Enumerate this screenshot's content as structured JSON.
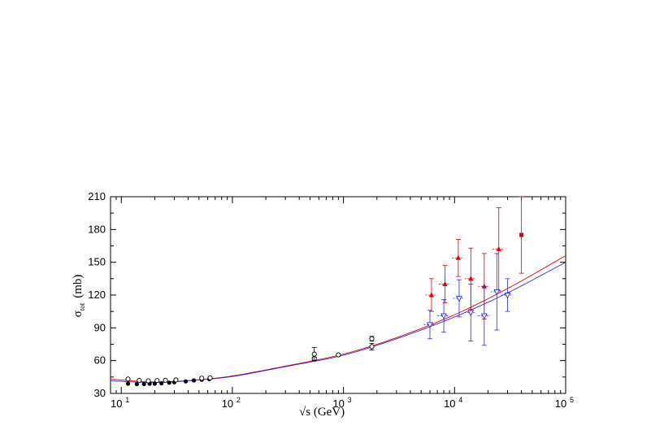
{
  "chart_data": {
    "type": "scatter",
    "title": "",
    "xlabel": "√s  (GeV)",
    "ylabel": "σ",
    "ylabel_sub": "tot",
    "ylabel_unit": "(mb)",
    "xscale": "log",
    "xlim": [
      8,
      100000
    ],
    "ylim": [
      30,
      210
    ],
    "yticks": [
      "30",
      "60",
      "90",
      "120",
      "150",
      "180",
      "210"
    ],
    "yticks_values": [
      30,
      60,
      90,
      120,
      150,
      180,
      210
    ],
    "xticks": [
      {
        "value": 10,
        "base": "10",
        "exp": "1"
      },
      {
        "value": 100,
        "base": "10",
        "exp": "2"
      },
      {
        "value": 1000,
        "base": "10",
        "exp": "3"
      },
      {
        "value": 10000,
        "base": "10",
        "exp": "4"
      },
      {
        "value": 100000,
        "base": "10",
        "exp": "5"
      }
    ],
    "grid": false,
    "legend": "none",
    "colors": {
      "red": "#e00000",
      "blue": "#2a2ae0",
      "black": "#000000"
    },
    "series": [
      {
        "marker": "filled-circle",
        "color": "#000000",
        "points": [
          {
            "x": 11.5,
            "y": 38.9
          },
          {
            "x": 13.8,
            "y": 38.5
          },
          {
            "x": 16.0,
            "y": 38.6
          },
          {
            "x": 18.0,
            "y": 38.8
          },
          {
            "x": 20.0,
            "y": 38.9
          },
          {
            "x": 23.0,
            "y": 39.3
          },
          {
            "x": 27.0,
            "y": 39.8
          },
          {
            "x": 30.0,
            "y": 40.2
          },
          {
            "x": 38.0,
            "y": 41.0
          },
          {
            "x": 45.0,
            "y": 41.9
          },
          {
            "x": 53.0,
            "y": 42.5
          },
          {
            "x": 62.0,
            "y": 43.1
          }
        ]
      },
      {
        "marker": "open-circle",
        "color": "#000000",
        "points": [
          {
            "x": 11.5,
            "y": 43.2
          },
          {
            "x": 14.5,
            "y": 42.0
          },
          {
            "x": 17.5,
            "y": 41.5
          },
          {
            "x": 21.0,
            "y": 41.8
          },
          {
            "x": 25.0,
            "y": 42.0
          },
          {
            "x": 31.0,
            "y": 42.3
          },
          {
            "x": 53.0,
            "y": 43.9
          },
          {
            "x": 63.0,
            "y": 44.3
          },
          {
            "x": 546,
            "y": 61.9,
            "err": 1.5
          },
          {
            "x": 546,
            "y": 66.0,
            "err": 6.0
          },
          {
            "x": 900,
            "y": 65.3
          },
          {
            "x": 1800,
            "y": 72.8,
            "err": 3.0
          },
          {
            "x": 1800,
            "y": 80.0,
            "err": 2.2
          }
        ]
      },
      {
        "marker": "filled-triangle",
        "color": "#e00000",
        "points": [
          {
            "x": 6200,
            "y": 120,
            "err": 15,
            "xerr_frac": 0.12
          },
          {
            "x": 8200,
            "y": 130,
            "err": 17,
            "xerr_frac": 0.12
          },
          {
            "x": 10800,
            "y": 154,
            "err": 17,
            "xerr_frac": 0.12
          },
          {
            "x": 14000,
            "y": 135,
            "err": 28,
            "xerr_frac": 0.12
          },
          {
            "x": 18500,
            "y": 128,
            "err": 30,
            "xerr_frac": 0.12
          },
          {
            "x": 25000,
            "y": 162,
            "err": 38,
            "xerr_frac": 0.12
          }
        ]
      },
      {
        "marker": "filled-square",
        "color": "#e00000",
        "points": [
          {
            "x": 40000,
            "y": 175,
            "err": 35
          }
        ]
      },
      {
        "marker": "open-triangle-down",
        "color": "#2a2ae0",
        "points": [
          {
            "x": 6000,
            "y": 93,
            "err": 13,
            "xerr_frac": 0.12
          },
          {
            "x": 8000,
            "y": 101,
            "err": 15,
            "xerr_frac": 0.12
          },
          {
            "x": 11000,
            "y": 117,
            "err": 17,
            "xerr_frac": 0.12
          },
          {
            "x": 14000,
            "y": 104,
            "err": 26,
            "xerr_frac": 0.12
          },
          {
            "x": 18500,
            "y": 101,
            "err": 27,
            "xerr_frac": 0.12
          },
          {
            "x": 24000,
            "y": 123,
            "err": 35,
            "xerr_frac": 0.12
          },
          {
            "x": 30000,
            "y": 120,
            "err": 15,
            "xerr_frac": 0.12
          }
        ]
      }
    ],
    "curves": [
      {
        "color": "#e00000",
        "points": [
          [
            8,
            43.0
          ],
          [
            20,
            40.5
          ],
          [
            50,
            42.5
          ],
          [
            100,
            46
          ],
          [
            300,
            55
          ],
          [
            1000,
            66
          ],
          [
            3000,
            81
          ],
          [
            10000,
            102
          ],
          [
            30000,
            126
          ],
          [
            100000,
            156
          ]
        ]
      },
      {
        "color": "#2a2ae0",
        "points": [
          [
            8,
            41.5
          ],
          [
            20,
            40.0
          ],
          [
            50,
            42.3
          ],
          [
            100,
            45.5
          ],
          [
            300,
            54.5
          ],
          [
            1000,
            65
          ],
          [
            3000,
            80
          ],
          [
            10000,
            100
          ],
          [
            30000,
            122
          ],
          [
            100000,
            150
          ]
        ]
      }
    ]
  }
}
